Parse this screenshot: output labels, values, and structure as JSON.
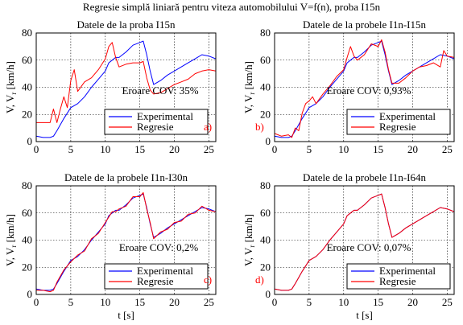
{
  "figure": {
    "title": "Regresie simplă liniară pentru viteza automobilului V=f(n), proba I15n"
  },
  "chart_data": [
    {
      "type": "line",
      "panel": "a)",
      "title": "Datele de la proba I15n",
      "ylabel": "V, V_r [km/h]",
      "xlabel": "",
      "xlim": [
        0,
        26
      ],
      "ylim": [
        0,
        80
      ],
      "xticks": [
        0,
        5,
        10,
        15,
        20,
        25
      ],
      "yticks": [
        0,
        20,
        40,
        60,
        80
      ],
      "grid": true,
      "annotation": "Eroare COV: 35%",
      "legend": {
        "position": "lower-right",
        "entries": [
          "Experimental",
          "Regresie"
        ]
      },
      "series": [
        {
          "name": "Experimental",
          "color": "#0000ff",
          "x": [
            0,
            1,
            2,
            2.5,
            3,
            4,
            5,
            6,
            7,
            8,
            9,
            10,
            10.5,
            11,
            11.5,
            12,
            13,
            14,
            15,
            15.5,
            16,
            16.5,
            17,
            18,
            19,
            20,
            21,
            22,
            23,
            24,
            25,
            26
          ],
          "y": [
            4,
            3,
            3,
            4,
            8,
            17,
            25,
            28,
            33,
            40,
            46,
            52,
            58,
            60,
            62,
            62,
            66,
            71,
            73,
            74,
            64,
            52,
            42,
            45,
            49,
            52,
            55,
            58,
            61,
            64,
            63,
            61
          ]
        },
        {
          "name": "Regresie",
          "color": "#ff0000",
          "x": [
            0,
            1,
            2,
            2.5,
            3,
            3.5,
            4,
            4.5,
            5,
            5.5,
            6,
            7,
            8,
            9,
            10,
            10.5,
            11,
            11.5,
            12,
            13,
            14,
            15,
            15.5,
            16,
            16.5,
            17,
            18,
            19,
            20,
            21,
            22,
            23,
            24,
            25,
            26
          ],
          "y": [
            14,
            14,
            14,
            24,
            14,
            24,
            33,
            25,
            45,
            53,
            37,
            44,
            47,
            53,
            61,
            70,
            73,
            62,
            55,
            57,
            58,
            58,
            59,
            47,
            38,
            35,
            36,
            39,
            42,
            44,
            46,
            50,
            52,
            53,
            52
          ]
        }
      ]
    },
    {
      "type": "line",
      "panel": "b)",
      "title": "Datele de la probele I1n-I15n",
      "ylabel": "V, V_r [km/h]",
      "xlabel": "",
      "xlim": [
        0,
        26
      ],
      "ylim": [
        0,
        80
      ],
      "xticks": [
        0,
        5,
        10,
        15,
        20,
        25
      ],
      "yticks": [
        0,
        20,
        40,
        60,
        80
      ],
      "grid": true,
      "annotation": "Eroare COV: 0,93%",
      "legend": {
        "position": "lower-right",
        "entries": [
          "Experimental",
          "Regresie"
        ]
      },
      "series": [
        {
          "name": "Experimental",
          "color": "#0000ff",
          "x": [
            0,
            1,
            2,
            2.5,
            3,
            4,
            5,
            6,
            7,
            8,
            9,
            10,
            10.5,
            11,
            11.5,
            12,
            13,
            14,
            15,
            15.5,
            16,
            16.5,
            17,
            18,
            19,
            20,
            21,
            22,
            23,
            24,
            25,
            26
          ],
          "y": [
            4,
            3,
            3,
            4,
            8,
            17,
            25,
            28,
            33,
            40,
            46,
            52,
            58,
            60,
            62,
            62,
            66,
            71,
            73,
            74,
            64,
            52,
            42,
            45,
            49,
            52,
            55,
            58,
            61,
            64,
            63,
            61
          ]
        },
        {
          "name": "Regresie",
          "color": "#ff0000",
          "x": [
            0,
            1,
            2,
            2.5,
            3,
            3.5,
            4,
            4.5,
            5,
            5.5,
            6,
            7,
            8,
            9,
            10,
            10.5,
            11,
            11.5,
            12,
            13,
            14,
            15,
            15.5,
            16,
            16.5,
            17,
            18,
            19,
            20,
            21,
            22,
            23,
            24,
            24.5,
            25,
            26
          ],
          "y": [
            6,
            4,
            5,
            3,
            10,
            8,
            21,
            28,
            30,
            33,
            28,
            35,
            41,
            48,
            53,
            62,
            70,
            63,
            60,
            64,
            72,
            70,
            75,
            66,
            53,
            43,
            43,
            47,
            52,
            55,
            56,
            58,
            55,
            67,
            63,
            62
          ]
        }
      ]
    },
    {
      "type": "line",
      "panel": "c)",
      "title": "Datele de la probele I1n-I30n",
      "ylabel": "V, V_r [km/h]",
      "xlabel": "t [s]",
      "xlim": [
        0,
        26
      ],
      "ylim": [
        0,
        80
      ],
      "xticks": [
        0,
        5,
        10,
        15,
        20,
        25
      ],
      "yticks": [
        0,
        20,
        40,
        60,
        80
      ],
      "grid": true,
      "annotation": "Eroare COV: 0,2%",
      "legend": {
        "position": "lower-right",
        "entries": [
          "Experimental",
          "Regresie"
        ]
      },
      "series": [
        {
          "name": "Experimental",
          "color": "#0000ff",
          "x": [
            0,
            1,
            2,
            2.5,
            3,
            4,
            5,
            6,
            7,
            8,
            9,
            10,
            10.5,
            11,
            11.5,
            12,
            13,
            14,
            15,
            15.5,
            16,
            16.5,
            17,
            18,
            19,
            20,
            21,
            22,
            23,
            24,
            25,
            26
          ],
          "y": [
            4,
            3,
            3,
            4,
            8,
            17,
            25,
            28,
            33,
            40,
            46,
            52,
            58,
            60,
            62,
            62,
            66,
            71,
            73,
            74,
            64,
            52,
            42,
            45,
            49,
            52,
            55,
            58,
            61,
            64,
            63,
            61
          ]
        },
        {
          "name": "Regresie",
          "color": "#ff0000",
          "x": [
            0,
            1,
            2,
            2.5,
            3,
            4,
            5,
            6,
            7,
            8,
            9,
            10,
            10.5,
            11,
            11.5,
            12,
            13,
            14,
            15,
            15.5,
            16,
            16.5,
            17,
            18,
            19,
            20,
            21,
            22,
            23,
            24,
            25,
            26
          ],
          "y": [
            3,
            3,
            2,
            3,
            9,
            18,
            24,
            29,
            32,
            41,
            45,
            53,
            57,
            61,
            61,
            63,
            65,
            72,
            72,
            75,
            63,
            53,
            41,
            46,
            48,
            53,
            54,
            59,
            60,
            65,
            62,
            61
          ]
        }
      ]
    },
    {
      "type": "line",
      "panel": "d)",
      "title": "Datele de la probele I1n-I64n",
      "ylabel": "V, V_r [km/h]",
      "xlabel": "t [s]",
      "xlim": [
        0,
        26
      ],
      "ylim": [
        0,
        80
      ],
      "xticks": [
        0,
        5,
        10,
        15,
        20,
        25
      ],
      "yticks": [
        0,
        20,
        40,
        60,
        80
      ],
      "grid": true,
      "annotation": "Eroare COV: 0,07%",
      "legend": {
        "position": "lower-right",
        "entries": [
          "Experimental",
          "Regresie"
        ]
      },
      "series": [
        {
          "name": "Experimental",
          "color": "#0000ff",
          "x": [
            0,
            1,
            2,
            2.5,
            3,
            4,
            5,
            6,
            7,
            8,
            9,
            10,
            10.5,
            11,
            11.5,
            12,
            13,
            14,
            15,
            15.5,
            16,
            16.5,
            17,
            18,
            19,
            20,
            21,
            22,
            23,
            24,
            25,
            26
          ],
          "y": [
            4,
            3,
            3,
            4,
            8,
            17,
            25,
            28,
            33,
            40,
            46,
            52,
            58,
            60,
            62,
            62,
            66,
            71,
            73,
            74,
            64,
            52,
            42,
            45,
            49,
            52,
            55,
            58,
            61,
            64,
            63,
            61
          ]
        },
        {
          "name": "Regresie",
          "color": "#ff0000",
          "x": [
            0,
            1,
            2,
            2.5,
            3,
            4,
            5,
            6,
            7,
            8,
            9,
            10,
            10.5,
            11,
            11.5,
            12,
            13,
            14,
            15,
            15.5,
            16,
            16.5,
            17,
            18,
            19,
            20,
            21,
            22,
            23,
            24,
            25,
            26
          ],
          "y": [
            4,
            3,
            3,
            4,
            8,
            17,
            25,
            28,
            33,
            40,
            46,
            52,
            58,
            60,
            62,
            62,
            66,
            71,
            73,
            74,
            64,
            52,
            42,
            45,
            49,
            52,
            55,
            58,
            61,
            64,
            63,
            61
          ]
        }
      ]
    }
  ]
}
